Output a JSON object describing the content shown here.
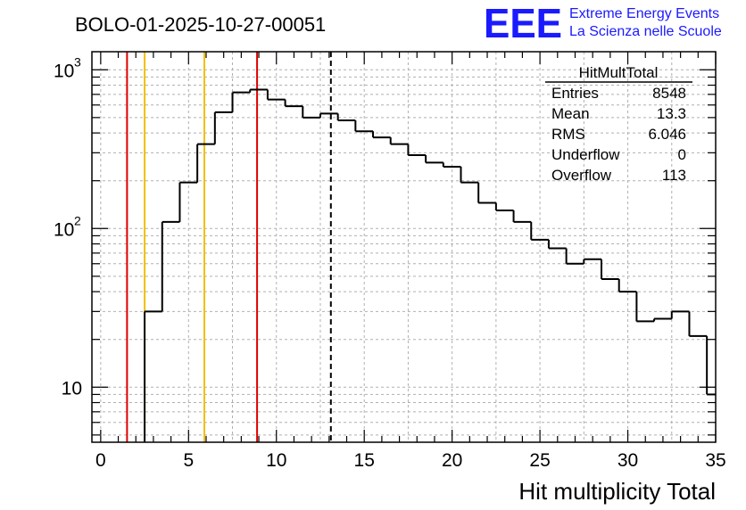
{
  "title": "BOLO-01-2025-10-27-00051",
  "logo": {
    "text": "EEE",
    "line1": "Extreme Energy Events",
    "line2": "La Scienza nelle Scuole",
    "color": "#1a1aff"
  },
  "stats": {
    "name": "HitMultTotal",
    "rows": [
      {
        "label": "Entries",
        "value": "8548"
      },
      {
        "label": "Mean",
        "value": "13.3"
      },
      {
        "label": "RMS",
        "value": "6.046"
      },
      {
        "label": "Underflow",
        "value": "0"
      },
      {
        "label": "Overflow",
        "value": "113"
      }
    ]
  },
  "chart_data": {
    "type": "histogram",
    "title": "BOLO-01-2025-10-27-00051",
    "xlabel": "Hit multiplicity Total",
    "ylabel": "",
    "xlim": [
      -0.5,
      35
    ],
    "ylim": [
      4.5,
      1300
    ],
    "log_y": true,
    "grid": true,
    "x_ticks": [
      "0",
      "5",
      "10",
      "15",
      "20",
      "25",
      "30",
      "35"
    ],
    "y_ticks": [
      {
        "value": 10,
        "label": "10"
      },
      {
        "value": 100,
        "label": "10",
        "exp": "2"
      },
      {
        "value": 1000,
        "label": "10",
        "exp": "3"
      }
    ],
    "bin_width": 1,
    "bin_edges_start": 0.5,
    "values": [
      0,
      0,
      30,
      110,
      195,
      340,
      540,
      720,
      750,
      650,
      590,
      500,
      530,
      480,
      410,
      375,
      340,
      290,
      260,
      245,
      195,
      145,
      130,
      110,
      85,
      75,
      60,
      64,
      48,
      40,
      26,
      27,
      30,
      21,
      9
    ],
    "vertical_lines": [
      {
        "x": 1.5,
        "color": "#e00000",
        "style": "solid"
      },
      {
        "x": 2.5,
        "color": "#f0c000",
        "style": "solid"
      },
      {
        "x": 5.9,
        "color": "#f0c000",
        "style": "solid"
      },
      {
        "x": 8.9,
        "color": "#e00000",
        "style": "solid"
      },
      {
        "x": 13.1,
        "color": "#000000",
        "style": "dashed"
      }
    ]
  }
}
